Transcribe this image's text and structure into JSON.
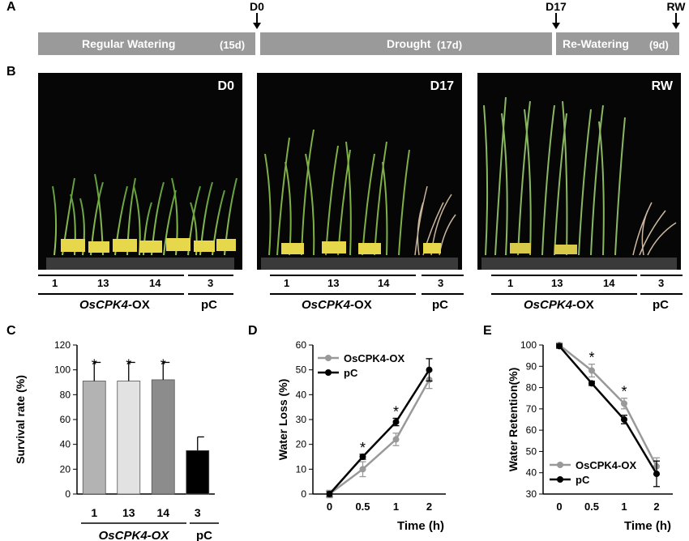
{
  "panel_a": {
    "label": "A",
    "segments": [
      {
        "name": "Regular Watering",
        "duration": "(15d)"
      },
      {
        "name": "Drought",
        "duration": "(17d)"
      },
      {
        "name": "Re-Watering",
        "duration": "(9d)"
      }
    ],
    "markers": [
      "D0",
      "D17",
      "RW"
    ]
  },
  "panel_b": {
    "label": "B",
    "photos": [
      {
        "tag": "D0",
        "lines": [
          "1",
          "13",
          "14",
          "3"
        ]
      },
      {
        "tag": "D17",
        "lines": [
          "1",
          "13",
          "14",
          "3"
        ]
      },
      {
        "tag": "RW",
        "lines": [
          "1",
          "13",
          "14",
          "3"
        ]
      }
    ],
    "group_ox_gene": "OsCPK4",
    "group_ox_suffix": "-OX",
    "group_pc": "pC"
  },
  "panel_c": {
    "label": "C",
    "group_ox": "OsCPK4-OX",
    "group_pc": "pC"
  },
  "panel_d": {
    "label": "D"
  },
  "panel_e": {
    "label": "E"
  },
  "chart_data": [
    {
      "type": "bar",
      "categories": [
        "1",
        "13",
        "14",
        "3"
      ],
      "values": [
        91,
        91,
        92,
        35
      ],
      "errors": [
        15,
        15,
        14,
        11
      ],
      "significant": [
        true,
        true,
        true,
        false
      ],
      "bar_colors": [
        "#b3b3b3",
        "#e2e2e2",
        "#8c8c8c",
        "#000000"
      ],
      "ylabel": "Survival rate (%)",
      "ylim": [
        0,
        120
      ],
      "yticks": [
        0,
        20,
        40,
        60,
        80,
        100,
        120
      ],
      "significance_marker": "*"
    },
    {
      "type": "line",
      "x": [
        "0",
        "0.5",
        "1",
        "2"
      ],
      "series": [
        {
          "name": "OsCPK4-OX",
          "color": "#999999",
          "values": [
            0,
            10,
            22,
            46
          ],
          "errors": [
            1.5,
            3,
            2.5,
            3.5
          ]
        },
        {
          "name": "pC",
          "color": "#000000",
          "values": [
            0,
            15,
            29,
            50
          ],
          "errors": [
            1,
            1,
            1.5,
            4.5
          ]
        }
      ],
      "significant": [
        false,
        true,
        true,
        false
      ],
      "xlabel": "Time (h)",
      "ylabel": "Water Loss (%)",
      "ylim": [
        0,
        60
      ],
      "yticks": [
        0,
        10,
        20,
        30,
        40,
        50,
        60
      ],
      "legend": "top-left",
      "significance_marker": "*"
    },
    {
      "type": "line",
      "x": [
        "0",
        "0.5",
        "1",
        "2"
      ],
      "series": [
        {
          "name": "OsCPK4-OX",
          "color": "#999999",
          "values": [
            100,
            88,
            72.5,
            43
          ],
          "errors": [
            1,
            3,
            2.5,
            4
          ]
        },
        {
          "name": "pC",
          "color": "#000000",
          "values": [
            99.5,
            82,
            65,
            39.5
          ],
          "errors": [
            1,
            1,
            2,
            6
          ]
        }
      ],
      "significant": [
        false,
        true,
        true,
        false
      ],
      "xlabel": "Time (h)",
      "ylabel": "Water Retention(%)",
      "ylim": [
        30,
        100
      ],
      "yticks": [
        30,
        40,
        50,
        60,
        70,
        80,
        90,
        100
      ],
      "legend": "bottom-left",
      "significance_marker": "*"
    }
  ]
}
